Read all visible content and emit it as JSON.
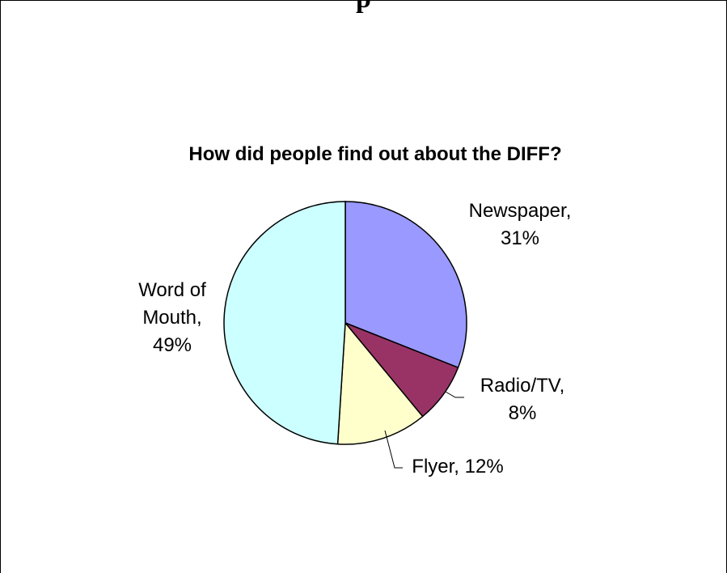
{
  "page": {
    "header_fragment": "p"
  },
  "chart_data": {
    "type": "pie",
    "title": "How did people find out about the DIFF?",
    "slices": [
      {
        "label": "Newspaper",
        "value": 31,
        "color": "#9999ff",
        "label_lines": [
          "Newspaper,",
          "31%"
        ]
      },
      {
        "label": "Radio/TV",
        "value": 8,
        "color": "#993366",
        "label_lines": [
          "Radio/TV,",
          "8%"
        ]
      },
      {
        "label": "Flyer",
        "value": 12,
        "color": "#ffffcc",
        "label_lines": [
          "Flyer, 12%"
        ]
      },
      {
        "label": "Word of Mouth",
        "value": 49,
        "color": "#ccffff",
        "label_lines": [
          "Word of",
          "Mouth,",
          "49%"
        ]
      }
    ],
    "legend": "none"
  }
}
